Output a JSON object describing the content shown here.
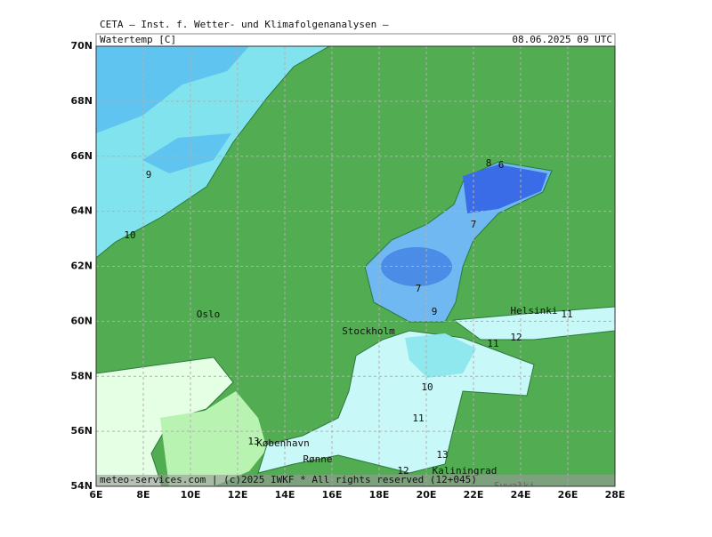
{
  "header": {
    "institute": "CETA – Inst. f. Wetter- und Klimafolgenanalysen –",
    "parameter": "Watertemp [C]",
    "valid_time": "08.06.2025 09 UTC"
  },
  "map": {
    "lat_labels": [
      "70N",
      "68N",
      "66N",
      "64N",
      "62N",
      "60N",
      "58N",
      "56N",
      "54N"
    ],
    "lon_labels": [
      "6E",
      "8E",
      "10E",
      "12E",
      "14E",
      "16E",
      "18E",
      "20E",
      "22E",
      "24E",
      "26E",
      "28E"
    ],
    "places": [
      "Oslo",
      "Stockholm",
      "Helsinki",
      "København",
      "Rønne",
      "Kaliningrad",
      "Suwałki"
    ],
    "contour_labels": [
      "9",
      "10",
      "8",
      "6",
      "7",
      "7",
      "9",
      "11",
      "12",
      "11",
      "10",
      "11",
      "13",
      "13",
      "12"
    ],
    "copyright": "meteo-services.com | (c)2025 IWKF * All rights reserved (12+045)"
  }
}
